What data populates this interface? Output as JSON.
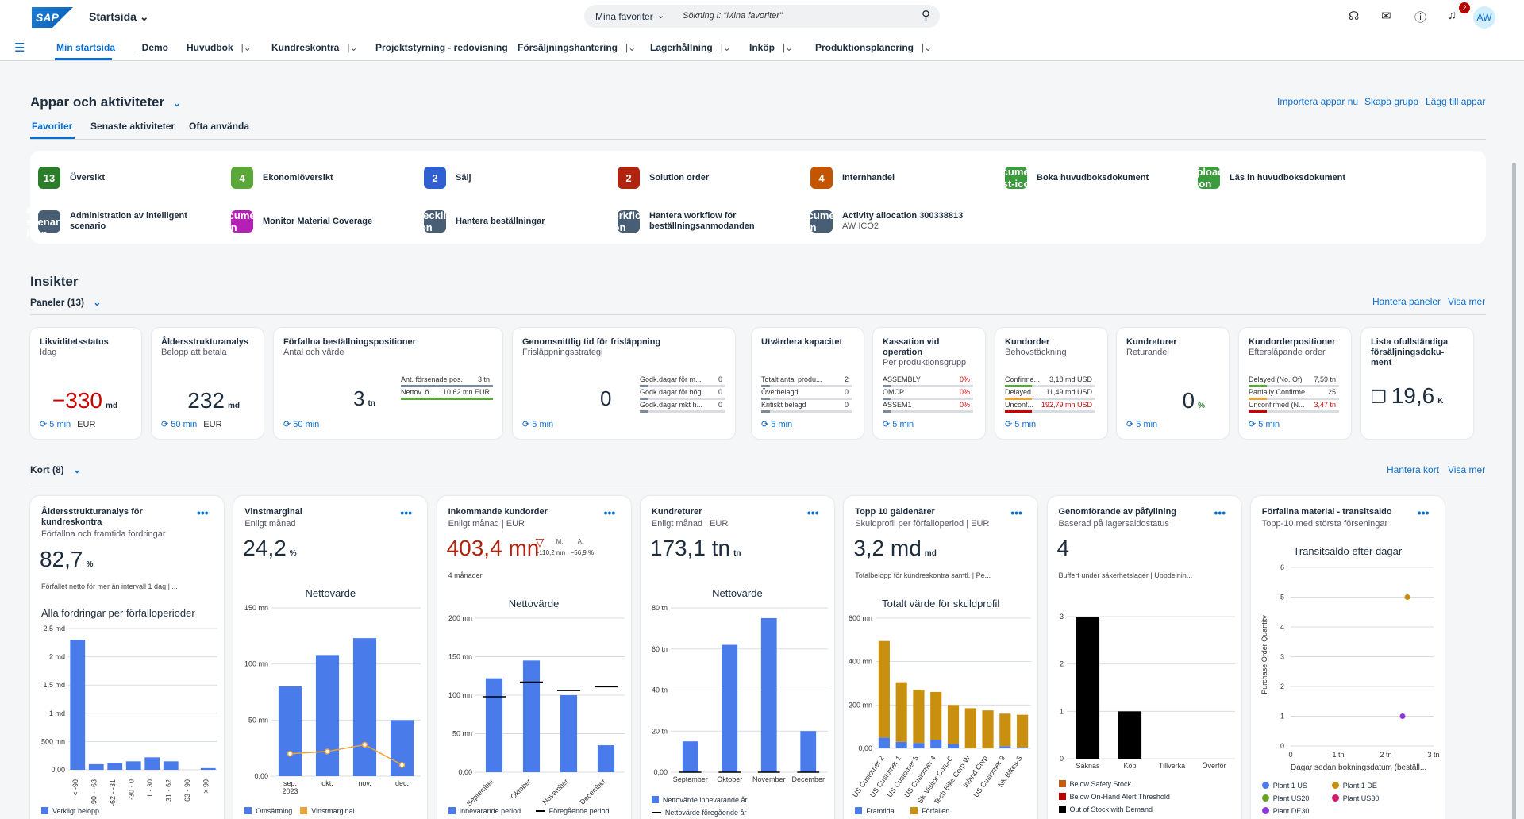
{
  "header": {
    "logo": "SAP",
    "title": "Startsida",
    "search_scope": "Mina favoriter",
    "search_placeholder": "Sökning i: \"Mina favoriter\"",
    "notif_count": "2",
    "avatar": "AW"
  },
  "nav": [
    "Min startsida",
    "_Demo",
    "Huvudbok",
    "Kundreskontra",
    "Projektstyrning - redovisning",
    "Försäljningshantering",
    "Lagerhållning",
    "Inköp",
    "Produktionsplanering"
  ],
  "apps": {
    "title": "Appar och aktiviteter",
    "actions": [
      "Importera appar nu",
      "Skapa grupp",
      "Lägg till appar"
    ],
    "tabs": [
      "Favoriter",
      "Senaste aktiviteter",
      "Ofta använda"
    ],
    "favorites": [
      {
        "label": "Översikt",
        "count": "13",
        "color": "#2b7d2b"
      },
      {
        "label": "Ekonomiöversikt",
        "count": "4",
        "color": "#5ba83a"
      },
      {
        "label": "Sälj",
        "count": "2",
        "color": "#2f5fd0"
      },
      {
        "label": "Solution order",
        "count": "2",
        "color": "#b0240f"
      },
      {
        "label": "Internhandel",
        "count": "4",
        "color": "#c35500"
      },
      {
        "label": "Boka huvudboksdokument",
        "icon": "document-post-icon",
        "color": "#3c9b3c"
      },
      {
        "label": "Läs in huvudboksdokument",
        "icon": "upload-icon",
        "color": "#3c9b3c"
      },
      {
        "label": "Administration av intelligent scenario",
        "icon": "ai-scenario-icon",
        "color": "#475e75"
      },
      {
        "label": "Monitor Material Coverage",
        "icon": "document-icon",
        "color": "#b61fb6"
      },
      {
        "label": "Hantera beställningar",
        "icon": "checklist-icon",
        "color": "#475e75"
      },
      {
        "label": "Hantera workflow för beställningsanmodanden",
        "icon": "workflow-icon",
        "color": "#475e75"
      },
      {
        "label": "Activity allocation 300338813",
        "sub": "AW ICO2",
        "icon": "document-icon",
        "color": "#475e75"
      }
    ]
  },
  "insights": {
    "title": "Insikter",
    "panels": "Paneler (13)",
    "manage": "Hantera paneler",
    "more": "Visa mer",
    "tiles": [
      {
        "title": "Likviditetsstatus",
        "sub": "Idag",
        "value": "−330",
        "unit": "md",
        "foot": "⟳ 5 min",
        "cur": "EUR",
        "neg": true
      },
      {
        "title": "Åldersstrukturanalys",
        "sub": "Belopp att betala",
        "value": "232",
        "unit": "md",
        "foot": "⟳ 50 min",
        "cur": "EUR"
      },
      {
        "title": "Förfallna beställningspositioner",
        "sub": "Antal och värde",
        "value": "3",
        "unit": "tn",
        "foot": "⟳ 50 min",
        "rows": [
          [
            "Ant. försenade pos.",
            "3 tn"
          ],
          [
            "Nettov. ö...",
            "10,62 mn EUR"
          ]
        ]
      },
      {
        "title": "Genomsnittlig tid för frisläppning",
        "sub": "Frisläppningsstrategi",
        "value": "0",
        "foot": "⟳ 5 min",
        "rows": [
          [
            "Godk.dagar för m...",
            "0"
          ],
          [
            "Godk.dagar för hög",
            "0"
          ],
          [
            "Godk.dagar mkt h...",
            "0"
          ]
        ]
      },
      {
        "title": "Utvärdera kapacitet",
        "sub": "",
        "foot": "⟳ 5 min",
        "rows": [
          [
            "Totalt antal produ...",
            "2"
          ],
          [
            "Överbelagd",
            "0"
          ],
          [
            "Kritiskt belagd",
            "0"
          ]
        ]
      },
      {
        "title": "Kassation vid operation",
        "sub": "Per produktionsgrupp",
        "foot": "⟳ 5 min",
        "rows": [
          [
            "ASSEMBLY",
            "0%"
          ],
          [
            "OMCP",
            "0%"
          ],
          [
            "ASSEM1",
            "0%"
          ]
        ]
      },
      {
        "title": "Kundorder",
        "sub": "Behovstäckning",
        "foot": "⟳ 5 min",
        "rows": [
          [
            "Confirme...",
            "3,18 md USD"
          ],
          [
            "Delayed...",
            "11,49 md USD"
          ],
          [
            "Unconf...",
            "192,79 mn USD"
          ]
        ]
      },
      {
        "title": "Kundreturer",
        "sub": "Returandel",
        "value": "0",
        "unit": "%",
        "foot": "⟳ 5 min"
      },
      {
        "title": "Kundorderpositioner",
        "sub": "Efterslåpande order",
        "foot": "⟳ 5 min",
        "rows": [
          [
            "Delayed (No. Of)",
            "7,59 tn"
          ],
          [
            "Partially Confirme...",
            "25"
          ],
          [
            "Unconfirmed (N...",
            "3,47 tn"
          ]
        ]
      },
      {
        "title": "Lista ofullständiga försäljningsdoku-ment",
        "value": "19,6",
        "unit": "K"
      }
    ]
  },
  "cards": {
    "title": "Kort (8)",
    "manage": "Hantera kort",
    "more": "Visa mer",
    "list": [
      {
        "title": "Åldersstrukturanalys för kundreskontra",
        "sub": "Förfallna och framtida fordringar",
        "kpi": "82,7",
        "unit": "%",
        "note": "Förfallet netto för mer än intervall 1 dag | ...",
        "chart": "Alla fordringar per förfalloperioder",
        "legend": [
          "Verkligt belopp"
        ]
      },
      {
        "title": "Vinstmarginal",
        "sub": "Enligt månad",
        "kpi": "24,2",
        "unit": "%",
        "chart": "Nettovärde",
        "legend": [
          "Omsättning",
          "Vinstmarginal"
        ]
      },
      {
        "title": "Inkommande kundorder",
        "sub": "Enligt månad | EUR",
        "kpi": "403,4 mn",
        "d1": "M.",
        "d2": "A.",
        "v1": "−110,2 mn",
        "v2": "−56,9 %",
        "note": "4 månader",
        "chart": "Nettovärde",
        "legend": [
          "Innevarande period",
          "Föregående period"
        ]
      },
      {
        "title": "Kundreturer",
        "sub": "Enligt månad | EUR",
        "kpi": "173,1 tn",
        "unit": "tn",
        "chart": "Nettovärde",
        "legend": [
          "Nettovärde innevarande år",
          "Nettovärde föregående år"
        ]
      },
      {
        "title": "Topp 10 gäldenärer",
        "sub": "Skuldprofil per förfalloperiod | EUR",
        "kpi": "3,2 md",
        "unit": "md",
        "note": "Totalbelopp för kundreskontra samtl. | Pe...",
        "chart": "Totalt värde för skuldprofil",
        "legend": [
          "Framtida",
          "Förfallen"
        ]
      },
      {
        "title": "Genomförande av påfyllning",
        "sub": "Baserad på lagersaldostatus",
        "kpi": "4",
        "note": "Buffert under säkerhetslager | Uppdelnin...",
        "legend": [
          "Below Safety Stock",
          "Below On-Hand Alert Threshold",
          "Out of Stock with Demand"
        ]
      },
      {
        "title": "Förfallna material - transitsaldo",
        "sub": "Topp-10 med största förseningar",
        "chart": "Transitsaldo efter dagar",
        "ylabel": "Purchase Order Quantity",
        "xlabel": "Dagar sedan bokningsdatum (beställ...",
        "legend": [
          "Plant 1 US",
          "Plant 1 DE",
          "Plant US20",
          "Plant US30",
          "Plant DE30"
        ]
      }
    ]
  },
  "chart_data": [
    {
      "type": "bar",
      "title": "Alla fordringar per förfalloperioder",
      "categories": [
        "< -90",
        "-90 - -63",
        "-62 - -31",
        "-30 - 0",
        "1 - 30",
        "31 - 62",
        "63 - 90",
        "> 90"
      ],
      "values": [
        2.3,
        0.1,
        0.12,
        0.15,
        0.22,
        0.15,
        0.0,
        0.03
      ],
      "ylim": [
        0,
        2.5
      ],
      "yticks": [
        "0,00",
        "500 mn",
        "1 md",
        "1,5 md",
        "2 md",
        "2,5 md"
      ],
      "series": [
        {
          "name": "Verkligt belopp",
          "color": "#4a7bea"
        }
      ]
    },
    {
      "type": "bar",
      "title": "Nettovärde",
      "categories": [
        "sep. 2023",
        "okt.",
        "nov.",
        "dec."
      ],
      "series": [
        {
          "name": "Omsättning",
          "values": [
            80,
            108,
            123,
            50
          ],
          "color": "#4a7bea"
        },
        {
          "name": "Vinstmarginal",
          "values": [
            20,
            22,
            28,
            10
          ],
          "type": "line",
          "color": "#e8a33a"
        }
      ],
      "ylim": [
        0,
        150
      ],
      "yticks": [
        "0,00",
        "50 mn",
        "100 mn",
        "150 mn"
      ]
    },
    {
      "type": "bar",
      "title": "Nettovärde",
      "categories": [
        "September",
        "Oktober",
        "November",
        "December"
      ],
      "series": [
        {
          "name": "Innevarande period",
          "values": [
            122,
            145,
            100,
            35
          ],
          "color": "#4a7bea"
        },
        {
          "name": "Föregående period",
          "values": [
            98,
            117,
            106,
            111
          ],
          "type": "marker",
          "color": "#000000"
        }
      ],
      "ylim": [
        0,
        200
      ],
      "yticks": [
        "0,00",
        "50 mn",
        "100 mn",
        "150 mn",
        "200 mn"
      ]
    },
    {
      "type": "bar",
      "title": "Nettovärde",
      "categories": [
        "September",
        "Oktober",
        "November",
        "December"
      ],
      "series": [
        {
          "name": "Nettovärde innevarande år",
          "values": [
            15,
            62,
            75,
            20
          ],
          "color": "#4a7bea"
        },
        {
          "name": "Nettovärde föregående år",
          "values": [
            0,
            0,
            0,
            0
          ],
          "type": "marker",
          "color": "#000000"
        }
      ],
      "ylim": [
        0,
        80
      ],
      "yticks": [
        "0,00",
        "20 tn",
        "40 tn",
        "60 tn",
        "80 tn"
      ]
    },
    {
      "type": "bar",
      "title": "Totalt värde för skuldprofil",
      "categories": [
        "US Customer 2",
        "US Customer 1",
        "US Customer 5",
        "US Customer 4",
        "SK Visitor Corp-C",
        "Tech Bike Corp-W",
        "Inland Corp",
        "US Customer 3",
        "NK Bikes-S"
      ],
      "series": [
        {
          "name": "Framtida",
          "values": [
            50,
            30,
            25,
            40,
            20,
            0,
            0,
            10,
            5
          ],
          "color": "#4a7bea"
        },
        {
          "name": "Förfallen",
          "values": [
            445,
            275,
            245,
            220,
            180,
            185,
            175,
            150,
            150
          ],
          "color": "#c8900e"
        }
      ],
      "stacked": true,
      "ylim": [
        0,
        600
      ],
      "yticks": [
        "0,00",
        "200 mn",
        "400 mn",
        "600 mn"
      ]
    },
    {
      "type": "bar",
      "categories": [
        "Saknas",
        "Köp",
        "Tillverka",
        "Överför"
      ],
      "series": [
        {
          "name": "Below Safety Stock",
          "values": [
            0,
            0,
            0,
            0
          ],
          "color": "#c55a11"
        },
        {
          "name": "Below On-Hand Alert Threshold",
          "values": [
            0,
            0,
            0,
            0
          ],
          "color": "#b00"
        },
        {
          "name": "Out of Stock with Demand",
          "values": [
            3,
            1,
            0,
            0
          ],
          "color": "#000000"
        }
      ],
      "ylim": [
        0,
        3
      ],
      "yticks": [
        "0",
        "1",
        "2",
        "3"
      ]
    },
    {
      "type": "scatter",
      "title": "Transitsaldo efter dagar",
      "xlabel": "Dagar sedan bokningsdatum (beställ...",
      "ylabel": "Purchase Order Quantity",
      "xlim": [
        0,
        3
      ],
      "ylim": [
        0,
        6
      ],
      "xticks": [
        "0",
        "1 tn",
        "2 tn",
        "3 tn"
      ],
      "yticks": [
        "0",
        "1",
        "2",
        "3",
        "4",
        "5",
        "6"
      ],
      "series": [
        {
          "name": "Plant 1 US",
          "color": "#4a7bea",
          "points": []
        },
        {
          "name": "Plant 1 DE",
          "color": "#c8900e",
          "points": [
            [
              2.45,
              5
            ]
          ]
        },
        {
          "name": "Plant US20",
          "color": "#6aa121",
          "points": []
        },
        {
          "name": "Plant US30",
          "color": "#d01b6b",
          "points": []
        },
        {
          "name": "Plant DE30",
          "color": "#8a3bd8",
          "points": [
            [
              2.35,
              1
            ]
          ]
        }
      ]
    }
  ]
}
